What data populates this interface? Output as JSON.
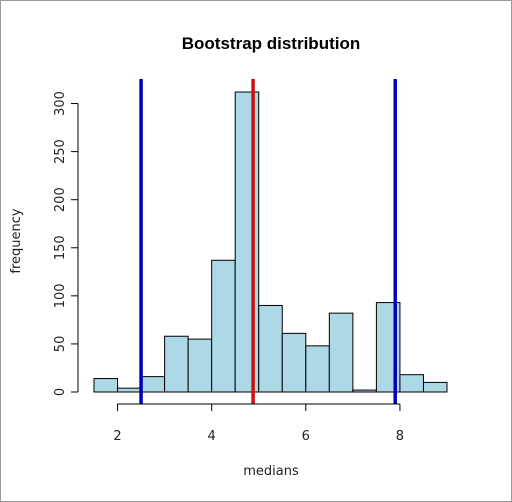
{
  "chart_data": {
    "type": "bar",
    "title": "Bootstrap distribution",
    "xlabel": "medians",
    "ylabel": "frequency",
    "bin_edges": [
      1.5,
      2.0,
      2.5,
      3.0,
      3.5,
      4.0,
      4.5,
      5.0,
      5.5,
      6.0,
      6.5,
      7.0,
      7.5,
      8.0,
      8.5,
      9.0
    ],
    "values": [
      14,
      4,
      16,
      58,
      55,
      137,
      312,
      90,
      61,
      48,
      82,
      2,
      93,
      18,
      10
    ],
    "xlim": [
      1.5,
      9.0
    ],
    "ylim": [
      0,
      312
    ],
    "x_ticks": [
      2,
      4,
      6,
      8
    ],
    "y_ticks": [
      0,
      50,
      100,
      150,
      200,
      250,
      300
    ],
    "bar_fill": "#add8e6",
    "bar_stroke": "#000000",
    "vlines": [
      {
        "x": 2.5,
        "color": "#0000bb"
      },
      {
        "x": 4.88,
        "color": "#cc1111"
      },
      {
        "x": 7.9,
        "color": "#0000bb"
      }
    ],
    "grid": false,
    "legend": "none"
  }
}
